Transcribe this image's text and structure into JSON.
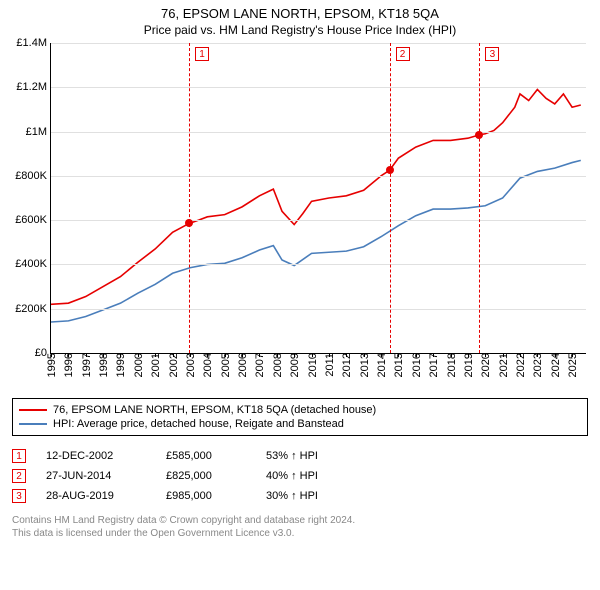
{
  "title": "76, EPSOM LANE NORTH, EPSOM, KT18 5QA",
  "subtitle": "Price paid vs. HM Land Registry's House Price Index (HPI)",
  "chart": {
    "type": "line",
    "background_color": "#ffffff",
    "grid_color": "#e0e0e0",
    "ylim": [
      0,
      1400000
    ],
    "ytick_step": 200000,
    "ytick_labels": [
      "£0",
      "£200K",
      "£400K",
      "£600K",
      "£800K",
      "£1M",
      "£1.2M",
      "£1.4M"
    ],
    "xlim": [
      1995,
      2025.8
    ],
    "xticks": [
      1995,
      1996,
      1997,
      1998,
      1999,
      2000,
      2001,
      2002,
      2003,
      2004,
      2005,
      2006,
      2007,
      2008,
      2009,
      2010,
      2011,
      2012,
      2013,
      2014,
      2015,
      2016,
      2017,
      2018,
      2019,
      2020,
      2021,
      2022,
      2023,
      2024,
      2025
    ],
    "title_fontsize": 13,
    "label_fontsize": 11,
    "line_width": 1.6,
    "series": [
      {
        "id": "property",
        "label": "76, EPSOM LANE NORTH, EPSOM, KT18 5QA (detached house)",
        "color": "#e60000",
        "x": [
          1995,
          1996,
          1997,
          1998,
          1999,
          2000,
          2001,
          2002,
          2002.95,
          2003.5,
          2004,
          2005,
          2006,
          2007,
          2007.8,
          2008.3,
          2009,
          2009.5,
          2010,
          2011,
          2012,
          2013,
          2014,
          2014.49,
          2015,
          2016,
          2017,
          2018,
          2019,
          2019.66,
          2020,
          2020.5,
          2021,
          2021.7,
          2022,
          2022.5,
          2023,
          2023.5,
          2024,
          2024.5,
          2025,
          2025.5
        ],
        "y": [
          220000,
          225000,
          255000,
          300000,
          345000,
          410000,
          470000,
          545000,
          585000,
          600000,
          615000,
          625000,
          660000,
          710000,
          740000,
          640000,
          580000,
          630000,
          685000,
          700000,
          710000,
          735000,
          800000,
          825000,
          880000,
          930000,
          960000,
          960000,
          970000,
          985000,
          990000,
          1005000,
          1040000,
          1110000,
          1170000,
          1140000,
          1190000,
          1150000,
          1125000,
          1170000,
          1110000,
          1120000
        ]
      },
      {
        "id": "hpi",
        "label": "HPI: Average price, detached house, Reigate and Banstead",
        "color": "#4a7ebb",
        "x": [
          1995,
          1996,
          1997,
          1998,
          1999,
          2000,
          2001,
          2002,
          2003,
          2004,
          2005,
          2006,
          2007,
          2007.8,
          2008.3,
          2009,
          2010,
          2011,
          2012,
          2013,
          2014,
          2015,
          2016,
          2017,
          2018,
          2019,
          2020,
          2021,
          2022,
          2023,
          2024,
          2025,
          2025.5
        ],
        "y": [
          140000,
          145000,
          165000,
          195000,
          225000,
          270000,
          310000,
          360000,
          385000,
          400000,
          405000,
          430000,
          465000,
          485000,
          420000,
          395000,
          450000,
          455000,
          460000,
          480000,
          525000,
          575000,
          620000,
          650000,
          650000,
          655000,
          665000,
          700000,
          790000,
          820000,
          835000,
          860000,
          870000
        ]
      }
    ],
    "markers": [
      {
        "x": 2002.95,
        "y": 585000,
        "color": "#e60000",
        "label": "1"
      },
      {
        "x": 2014.49,
        "y": 825000,
        "color": "#e60000",
        "label": "2"
      },
      {
        "x": 2019.66,
        "y": 985000,
        "color": "#e60000",
        "label": "3"
      }
    ],
    "vline_color": "#e60000",
    "vline_dash": "3,3"
  },
  "legend": {
    "rows": [
      {
        "color": "#e60000",
        "text": "76, EPSOM LANE NORTH, EPSOM, KT18 5QA (detached house)"
      },
      {
        "color": "#4a7ebb",
        "text": "HPI: Average price, detached house, Reigate and Banstead"
      }
    ]
  },
  "transactions": [
    {
      "idx": "1",
      "date": "12-DEC-2002",
      "price": "£585,000",
      "hpi": "53% ↑ HPI",
      "color": "#e60000"
    },
    {
      "idx": "2",
      "date": "27-JUN-2014",
      "price": "£825,000",
      "hpi": "40% ↑ HPI",
      "color": "#e60000"
    },
    {
      "idx": "3",
      "date": "28-AUG-2019",
      "price": "£985,000",
      "hpi": "30% ↑ HPI",
      "color": "#e60000"
    }
  ],
  "footer": {
    "line1": "Contains HM Land Registry data © Crown copyright and database right 2024.",
    "line2": "This data is licensed under the Open Government Licence v3.0.",
    "color": "#888888",
    "fontsize": 10
  }
}
